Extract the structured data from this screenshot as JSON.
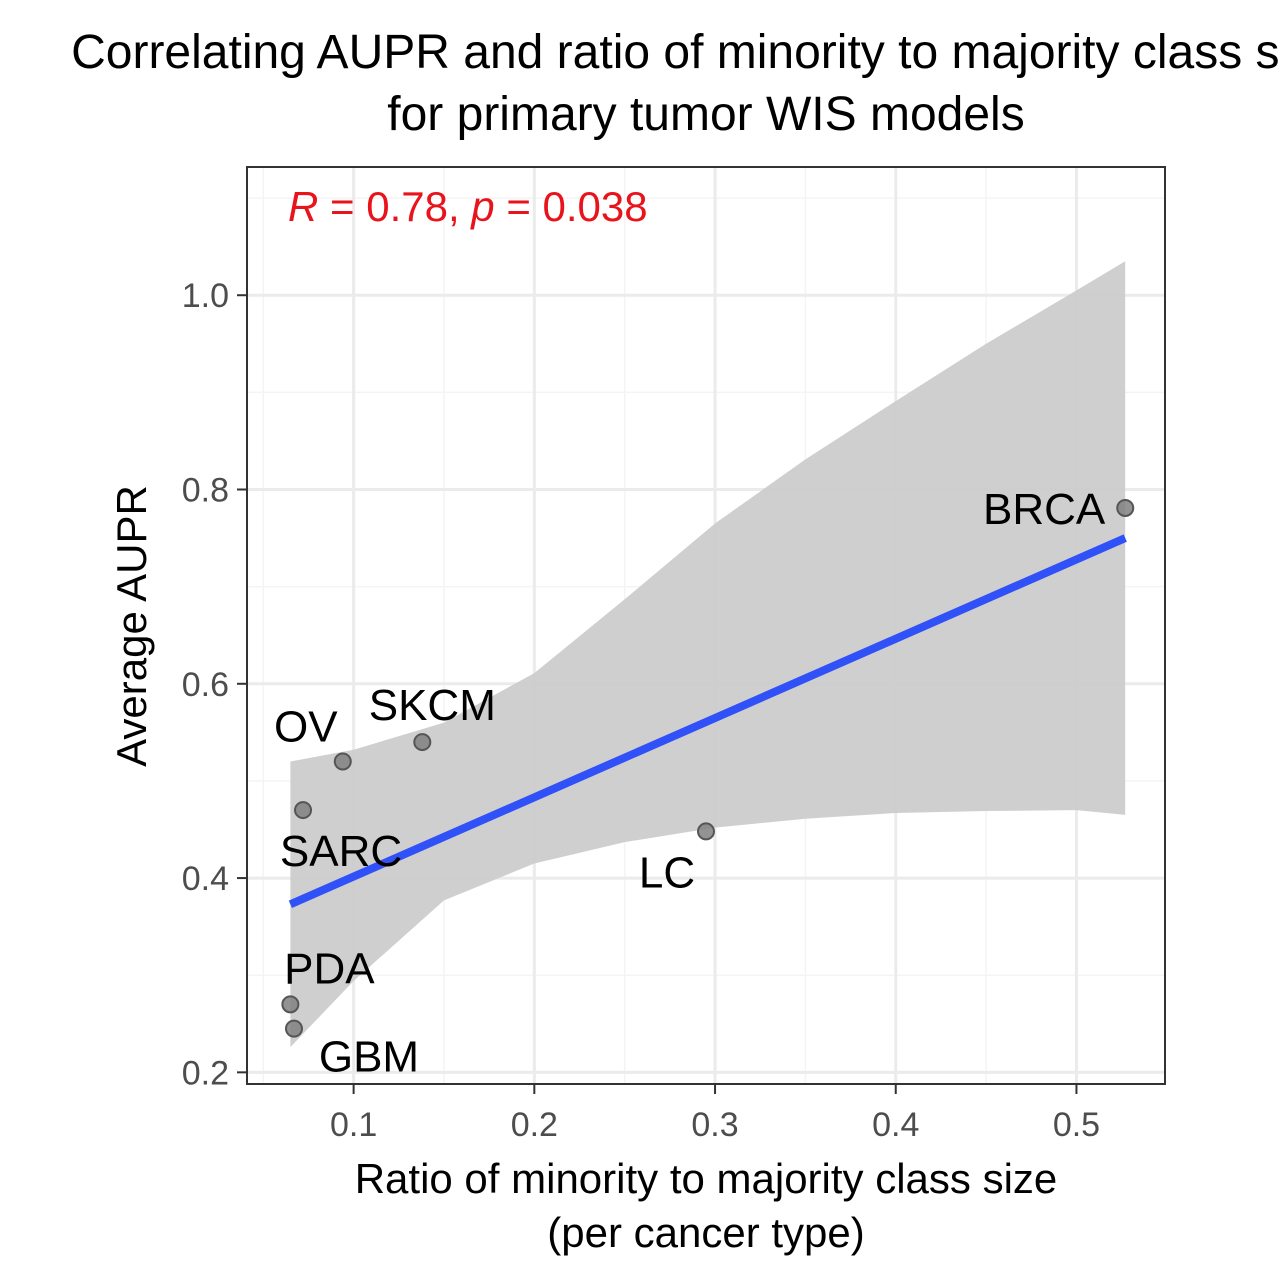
{
  "chart_data": {
    "type": "scatter",
    "title": "Correlating AUPR and ratio of minority to majority class size",
    "subtitle": "for primary tumor WIS models",
    "xlabel": "Ratio of minority to majority class size",
    "xlabel_line2": "(per cancer type)",
    "ylabel": "Average AUPR",
    "xlim": [
      0.041,
      0.549
    ],
    "ylim": [
      0.188,
      1.132
    ],
    "x_ticks": [
      0.1,
      0.2,
      0.3,
      0.4,
      0.5
    ],
    "x_tick_labels": [
      "0.1",
      "0.2",
      "0.3",
      "0.4",
      "0.5"
    ],
    "y_ticks": [
      0.2,
      0.4,
      0.6,
      0.8,
      1.0
    ],
    "y_tick_labels": [
      "0.2",
      "0.4",
      "0.6",
      "0.8",
      "1.0"
    ],
    "grid": true,
    "points": [
      {
        "label": "BRCA",
        "x": 0.527,
        "y": 0.781
      },
      {
        "label": "SKCM",
        "x": 0.138,
        "y": 0.54
      },
      {
        "label": "OV",
        "x": 0.094,
        "y": 0.52
      },
      {
        "label": "SARC",
        "x": 0.072,
        "y": 0.47
      },
      {
        "label": "LC",
        "x": 0.295,
        "y": 0.448
      },
      {
        "label": "PDA",
        "x": 0.065,
        "y": 0.27
      },
      {
        "label": "GBM",
        "x": 0.067,
        "y": 0.245
      }
    ],
    "regression": {
      "x": [
        0.065,
        0.527
      ],
      "y": [
        0.373,
        0.75
      ],
      "color": "#3050f8"
    },
    "confidence_band": {
      "x": [
        0.065,
        0.1,
        0.15,
        0.2,
        0.25,
        0.3,
        0.35,
        0.4,
        0.45,
        0.5,
        0.527
      ],
      "upper": [
        0.52,
        0.532,
        0.56,
        0.611,
        0.687,
        0.765,
        0.831,
        0.891,
        0.95,
        1.005,
        1.035
      ],
      "lower": [
        0.226,
        0.294,
        0.377,
        0.415,
        0.437,
        0.452,
        0.461,
        0.467,
        0.469,
        0.47,
        0.465
      ],
      "color": "#cccccc"
    },
    "annotation": {
      "R_symbol": "R",
      "R_value": " = 0.78, ",
      "p_symbol": "p",
      "p_value": " = 0.038",
      "color": "#e8131b"
    },
    "colors": {
      "point_fill": "#808080",
      "point_stroke": "#555555",
      "grid_major": "#ebebeb",
      "grid_minor": "#f4f4f4",
      "panel_border": "#333333"
    }
  }
}
